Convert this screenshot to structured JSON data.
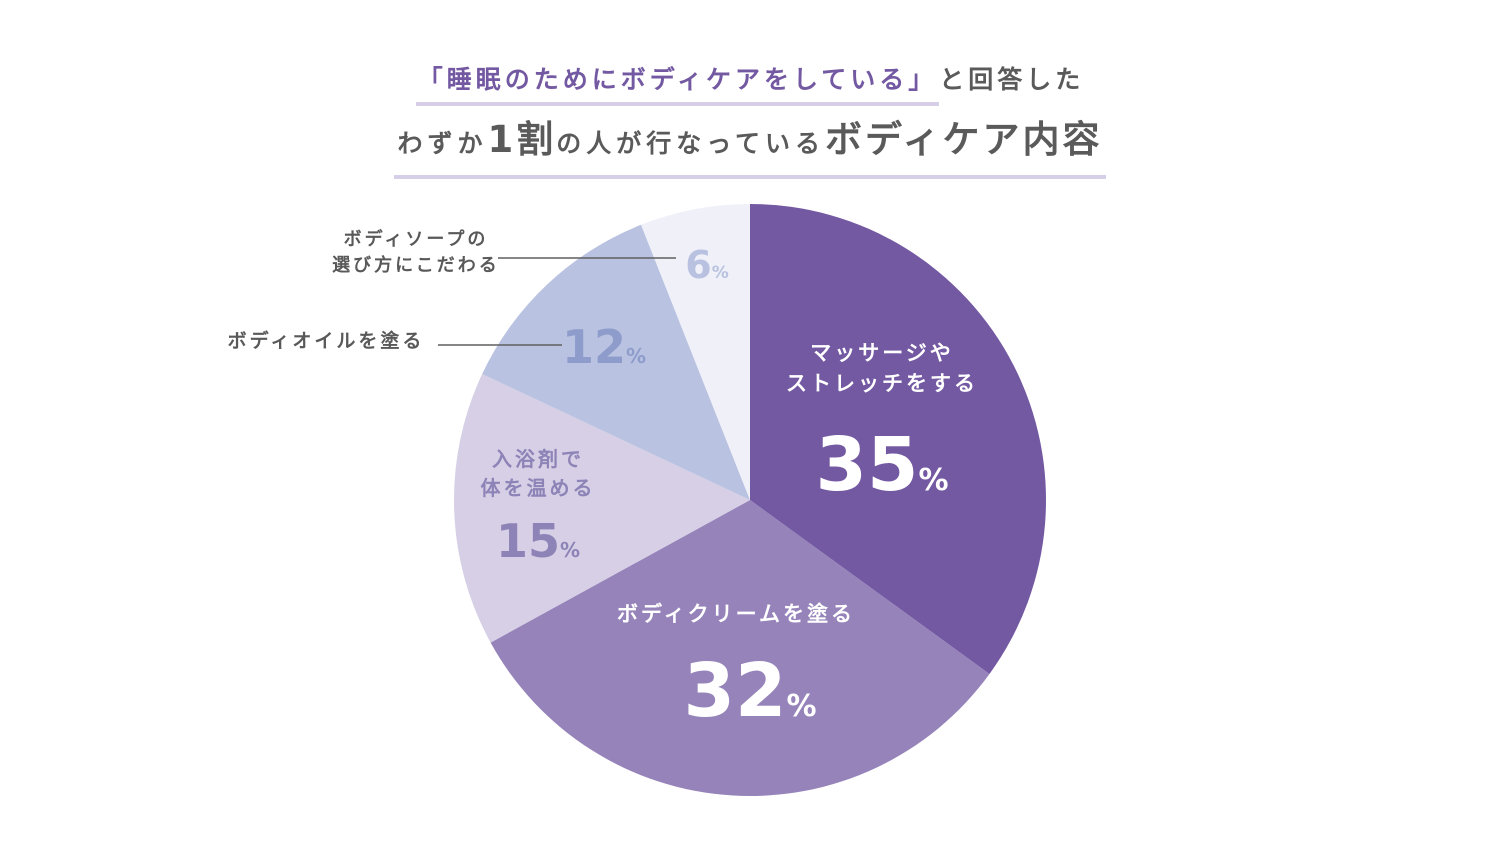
{
  "title": {
    "line1_accent": "「睡眠のためにボディケアをしている」",
    "line1_rest": "と回答した",
    "line2_a": "わずか",
    "line2_b": "1割",
    "line2_c": "の人が行なっている",
    "line2_d": "ボディケア内容"
  },
  "colors": {
    "massage": "#7358a2",
    "cream": "#9583ba",
    "bath": "#d6cfe5",
    "oil": "#b9c2e1",
    "soap": "#eff0f8",
    "label_light": "#ffffff",
    "label_mid": "#8d83b7",
    "label_blue": "#8e9ccb",
    "label_pale": "#b8c2e0",
    "leader_text": "#595959"
  },
  "chart_data": {
    "type": "pie",
    "title": "「睡眠のためにボディケアをしている」と回答したわずか1割の人が行なっているボディケア内容",
    "slices": [
      {
        "key": "massage",
        "label_lines": [
          "マッサージや",
          "ストレッチをする"
        ],
        "value": 35,
        "value_label": "35",
        "unit": "%"
      },
      {
        "key": "cream",
        "label_lines": [
          "ボディクリームを塗る"
        ],
        "value": 32,
        "value_label": "32",
        "unit": "%"
      },
      {
        "key": "bath",
        "label_lines": [
          "入浴剤で",
          "体を温める"
        ],
        "value": 15,
        "value_label": "15",
        "unit": "%"
      },
      {
        "key": "oil",
        "label_lines": [
          "ボディオイルを塗る"
        ],
        "value": 12,
        "value_label": "12",
        "unit": "%"
      },
      {
        "key": "soap",
        "label_lines": [
          "ボディソープの",
          "選び方にこだわる"
        ],
        "value": 6,
        "value_label": "6",
        "unit": "%"
      }
    ],
    "start": "12 o'clock",
    "direction": "clockwise",
    "legend": "none"
  }
}
